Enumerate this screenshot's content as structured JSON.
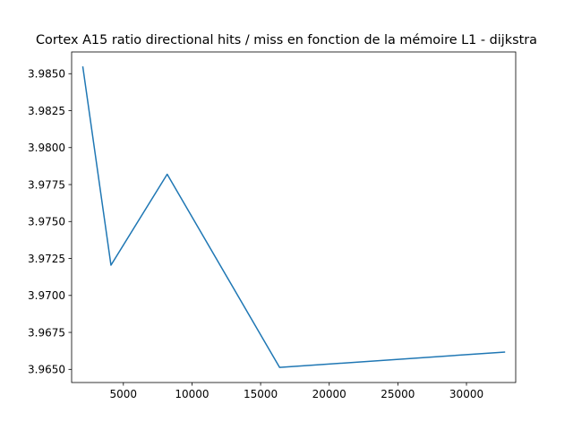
{
  "chart_data": {
    "type": "line",
    "title": "Cortex A15 ratio directional hits / miss en fonction de la mémoire L1 - dijkstra",
    "xlabel": "",
    "ylabel": "",
    "x": [
      2048,
      4096,
      8192,
      16384,
      32768
    ],
    "series": [
      {
        "values": [
          3.98545,
          3.97205,
          3.9782,
          3.96513,
          3.96617
        ]
      }
    ],
    "xlim": [
      1229,
      33587
    ],
    "ylim": [
      3.96411,
      3.98647
    ],
    "xticks": [
      5000,
      10000,
      15000,
      20000,
      25000,
      30000
    ],
    "xtick_labels": [
      "5000",
      "10000",
      "15000",
      "20000",
      "25000",
      "30000"
    ],
    "yticks": [
      3.965,
      3.9675,
      3.97,
      3.9725,
      3.975,
      3.9775,
      3.98,
      3.9825,
      3.985
    ],
    "ytick_labels": [
      "3.9650",
      "3.9675",
      "3.9700",
      "3.9725",
      "3.9750",
      "3.9775",
      "3.9800",
      "3.9825",
      "3.9850"
    ],
    "grid": false,
    "colors": {
      "line": "#1f77b4",
      "axes": "#000000",
      "background": "#ffffff"
    }
  }
}
